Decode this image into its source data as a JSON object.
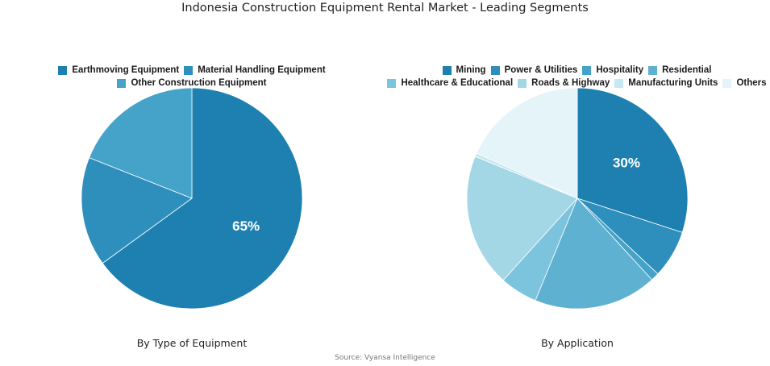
{
  "title": "Indonesia Construction Equipment Rental Market - Leading Segments",
  "source": "Source: Vyansa Intelligence",
  "chart_data": [
    {
      "type": "pie",
      "caption": "By Type of Equipment",
      "legend_position": "top",
      "slices": [
        {
          "label": "Earthmoving Equipment",
          "value": 65,
          "color": "#1d80b0",
          "shown_label": "65%"
        },
        {
          "label": "Material Handling Equipment",
          "value": 16,
          "color": "#2f8fbc",
          "shown_label": ""
        },
        {
          "label": "Other Construction Equipment",
          "value": 19,
          "color": "#45a2c8",
          "shown_label": ""
        }
      ]
    },
    {
      "type": "pie",
      "caption": "By Application",
      "legend_position": "top",
      "slices": [
        {
          "label": "Mining",
          "value": 30,
          "color": "#1d80b0",
          "shown_label": "30%"
        },
        {
          "label": "Power & Utilities",
          "value": 7,
          "color": "#2f8fbc",
          "shown_label": ""
        },
        {
          "label": "Hospitality",
          "value": 1.2,
          "color": "#45a2c8",
          "shown_label": ""
        },
        {
          "label": "Residential",
          "value": 18,
          "color": "#5fb1d1",
          "shown_label": ""
        },
        {
          "label": "Healthcare & Educational",
          "value": 5.5,
          "color": "#7cc4dd",
          "shown_label": ""
        },
        {
          "label": "Roads & Highway",
          "value": 19.5,
          "color": "#a3d7e6",
          "shown_label": ""
        },
        {
          "label": "Manufacturing Units",
          "value": 0.5,
          "color": "#c6e8f1",
          "shown_label": ""
        },
        {
          "label": "Others",
          "value": 18.3,
          "color": "#e4f4f9",
          "shown_label": ""
        }
      ]
    }
  ]
}
